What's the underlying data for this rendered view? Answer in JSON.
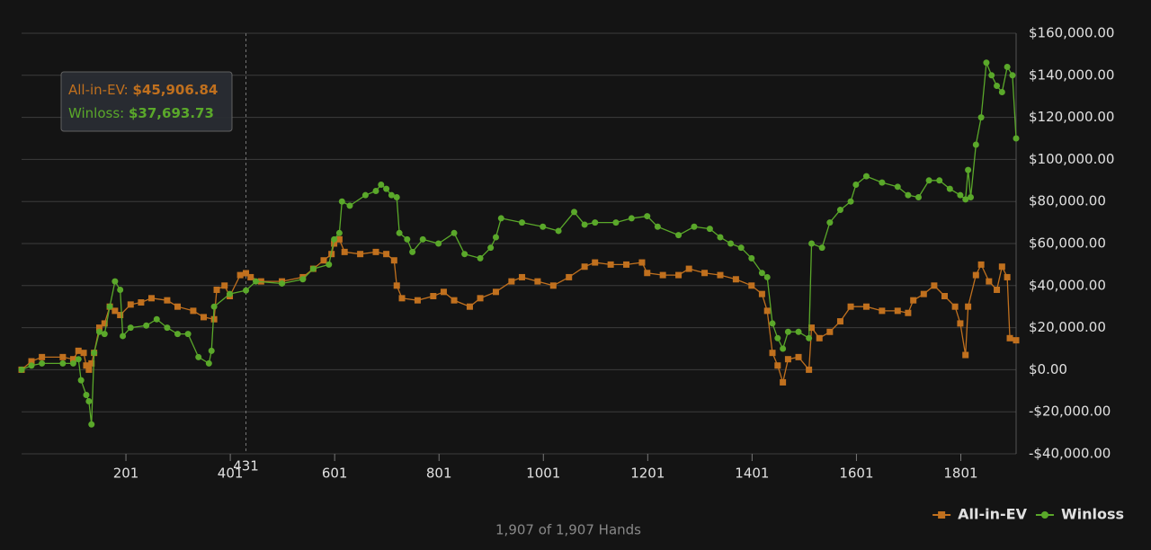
{
  "chart_data": {
    "type": "line",
    "xlim": [
      1,
      1907
    ],
    "xticks": [
      201,
      401,
      601,
      801,
      1001,
      1201,
      1401,
      1601,
      1801
    ],
    "ylim": [
      -40000,
      160000
    ],
    "yticks": [
      {
        "value": -40000,
        "label": "-$40,000.00"
      },
      {
        "value": -20000,
        "label": "-$20,000.00"
      },
      {
        "value": 0,
        "label": "$0.00"
      },
      {
        "value": 20000,
        "label": "$20,000.00"
      },
      {
        "value": 40000,
        "label": "$40,000.00"
      },
      {
        "value": 60000,
        "label": "$60,000.00"
      },
      {
        "value": 80000,
        "label": "$80,000.00"
      },
      {
        "value": 100000,
        "label": "$100,000.00"
      },
      {
        "value": 120000,
        "label": "$120,000.00"
      },
      {
        "value": 140000,
        "label": "$140,000.00"
      },
      {
        "value": 160000,
        "label": "$160,000.00"
      }
    ],
    "grid": true,
    "legend": "bottom-right",
    "footer": "1,907 of 1,907 Hands",
    "crosshair": {
      "x": 431,
      "rows": [
        {
          "label": "All-in-EV:",
          "value": "$45,906.84"
        },
        {
          "label": "Winloss:",
          "value": "$37,693.73"
        }
      ]
    },
    "series": [
      {
        "name": "All-in-EV",
        "color": "#c0701e",
        "marker": "square",
        "x": [
          1,
          20,
          40,
          80,
          100,
          110,
          120,
          125,
          130,
          135,
          140,
          150,
          160,
          170,
          180,
          190,
          210,
          230,
          250,
          280,
          300,
          330,
          350,
          370,
          375,
          390,
          400,
          420,
          431,
          440,
          460,
          500,
          540,
          560,
          580,
          595,
          600,
          610,
          620,
          650,
          680,
          700,
          715,
          720,
          730,
          760,
          790,
          810,
          830,
          860,
          880,
          910,
          940,
          960,
          990,
          1020,
          1050,
          1080,
          1100,
          1130,
          1160,
          1190,
          1200,
          1230,
          1260,
          1280,
          1310,
          1340,
          1370,
          1400,
          1420,
          1430,
          1440,
          1450,
          1460,
          1470,
          1490,
          1510,
          1515,
          1530,
          1550,
          1570,
          1590,
          1620,
          1650,
          1680,
          1700,
          1710,
          1730,
          1750,
          1770,
          1790,
          1800,
          1810,
          1815,
          1830,
          1840,
          1855,
          1870,
          1880,
          1890,
          1895,
          1907
        ],
        "values": [
          0,
          4000,
          6000,
          6000,
          5000,
          9000,
          8000,
          2000,
          0,
          3000,
          8000,
          20000,
          22000,
          30000,
          28000,
          26000,
          31000,
          32000,
          34000,
          33000,
          30000,
          28000,
          25000,
          24000,
          38000,
          40000,
          35000,
          45000,
          45907,
          44000,
          42000,
          42000,
          44000,
          48000,
          52000,
          55000,
          60000,
          62000,
          56000,
          55000,
          56000,
          55000,
          52000,
          40000,
          34000,
          33000,
          35000,
          37000,
          33000,
          30000,
          34000,
          37000,
          42000,
          44000,
          42000,
          40000,
          44000,
          49000,
          51000,
          50000,
          50000,
          51000,
          46000,
          45000,
          45000,
          48000,
          46000,
          45000,
          43000,
          40000,
          36000,
          28000,
          8000,
          2000,
          -6000,
          5000,
          6000,
          0,
          20000,
          15000,
          18000,
          23000,
          30000,
          30000,
          28000,
          28000,
          27000,
          33000,
          36000,
          40000,
          35000,
          30000,
          22000,
          7000,
          30000,
          45000,
          50000,
          42000,
          38000,
          49000,
          44000,
          15000,
          14000
        ]
      },
      {
        "name": "Winloss",
        "color": "#5aa82a",
        "marker": "circle",
        "x": [
          1,
          20,
          40,
          80,
          100,
          110,
          115,
          125,
          130,
          135,
          140,
          150,
          160,
          170,
          180,
          190,
          195,
          210,
          240,
          260,
          280,
          300,
          320,
          340,
          360,
          365,
          370,
          400,
          431,
          450,
          500,
          540,
          560,
          590,
          600,
          610,
          615,
          630,
          660,
          680,
          690,
          700,
          710,
          720,
          725,
          740,
          750,
          770,
          800,
          830,
          850,
          880,
          900,
          910,
          920,
          960,
          1000,
          1030,
          1060,
          1080,
          1100,
          1140,
          1170,
          1200,
          1220,
          1260,
          1290,
          1320,
          1340,
          1360,
          1380,
          1400,
          1420,
          1430,
          1440,
          1450,
          1460,
          1470,
          1490,
          1510,
          1515,
          1535,
          1550,
          1570,
          1590,
          1600,
          1620,
          1650,
          1680,
          1700,
          1720,
          1740,
          1760,
          1780,
          1800,
          1810,
          1815,
          1820,
          1830,
          1840,
          1850,
          1860,
          1870,
          1880,
          1890,
          1900,
          1907
        ],
        "values": [
          0,
          2000,
          3000,
          3000,
          3000,
          5000,
          -5000,
          -12000,
          -15000,
          -26000,
          8000,
          18000,
          17000,
          30000,
          42000,
          38000,
          16000,
          20000,
          21000,
          24000,
          20000,
          17000,
          17000,
          6000,
          3000,
          9000,
          30000,
          36000,
          37694,
          42000,
          41000,
          43000,
          48000,
          50000,
          62000,
          65000,
          80000,
          78000,
          83000,
          85000,
          88000,
          86000,
          83000,
          82000,
          65000,
          62000,
          56000,
          62000,
          60000,
          65000,
          55000,
          53000,
          58000,
          63000,
          72000,
          70000,
          68000,
          66000,
          75000,
          69000,
          70000,
          70000,
          72000,
          73000,
          68000,
          64000,
          68000,
          67000,
          63000,
          60000,
          58000,
          53000,
          46000,
          44000,
          22000,
          15000,
          10000,
          18000,
          18000,
          15000,
          60000,
          58000,
          70000,
          76000,
          80000,
          88000,
          92000,
          89000,
          87000,
          83000,
          82000,
          90000,
          90000,
          86000,
          83000,
          81000,
          95000,
          82000,
          107000,
          120000,
          146000,
          140000,
          135000,
          132000,
          144000,
          140000,
          110000
        ]
      }
    ]
  }
}
